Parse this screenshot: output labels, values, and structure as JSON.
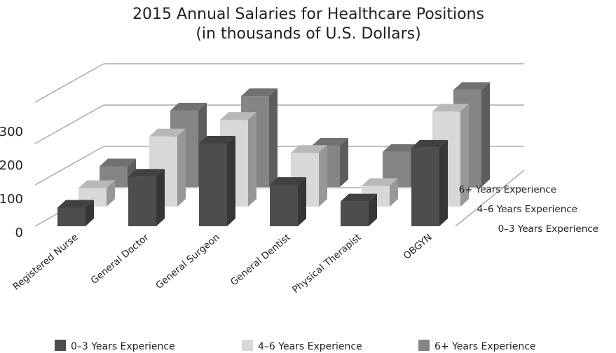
{
  "chart_data": {
    "type": "bar",
    "title": "2015 Annual Salaries for Healthcare Positions",
    "subtitle": "(in thousands of U.S. Dollars)",
    "xlabel": "",
    "ylabel": "",
    "categories": [
      "Registered Nurse",
      "General Doctor",
      "General Surgeon",
      "General Dentist",
      "Physical Therapist",
      "OBGYN"
    ],
    "series": [
      {
        "name": "0–3 Years Experience",
        "color": "#4d4d4d",
        "values": [
          45,
          120,
          200,
          100,
          60,
          190
        ]
      },
      {
        "name": "4–6 Years Experience",
        "color": "#d8d8d8",
        "values": [
          45,
          170,
          210,
          130,
          50,
          230
        ]
      },
      {
        "name": "6+ Years Experience",
        "color": "#858585",
        "values": [
          50,
          185,
          220,
          100,
          85,
          235
        ]
      }
    ],
    "y_ticks": [
      "0",
      "100",
      "200",
      "300"
    ],
    "ylim": [
      0,
      300
    ],
    "grid": true,
    "legend": "bottom",
    "style": "3d-clustered-depth"
  }
}
